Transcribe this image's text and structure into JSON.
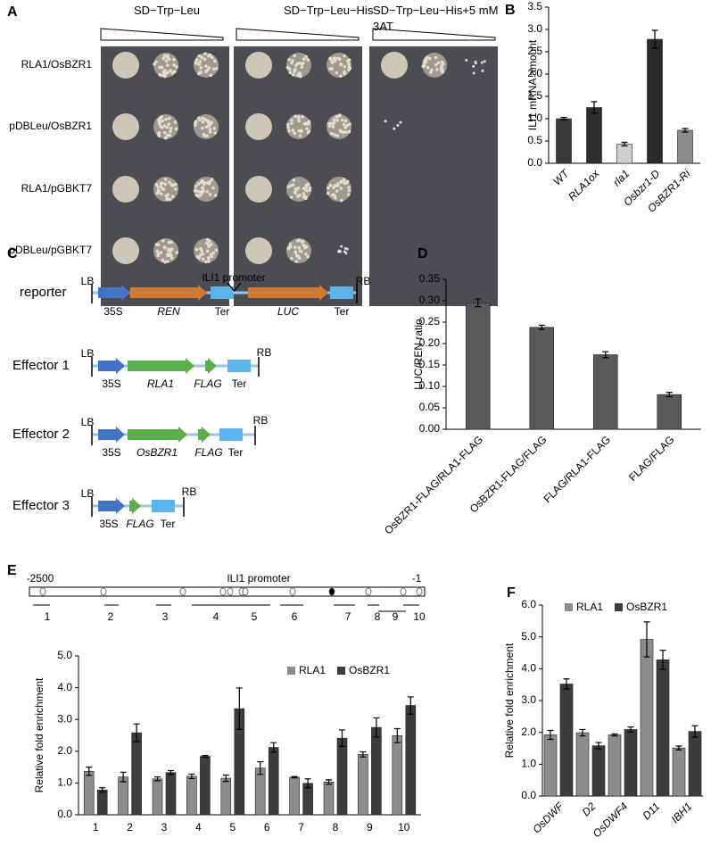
{
  "panel_a": {
    "label": "A",
    "conditions": [
      "SD−Trp−Leu",
      "SD−Trp−Leu−His",
      "SD−Trp−Leu−His+5 mM 3AT"
    ],
    "strains": [
      "RLA1/OsBZR1",
      "pDBLeu/OsBZR1",
      "RLA1/pGBKT7",
      "pDBLeu/pGBKT7"
    ]
  },
  "panel_c": {
    "label": "C",
    "constructs": [
      {
        "name": "reporter",
        "parts": [
          "LB",
          "35S",
          "REN",
          "Ter",
          "ILI1 promoter",
          "LUC",
          "Ter",
          "RB"
        ]
      },
      {
        "name": "Effector 1",
        "parts": [
          "LB",
          "35S",
          "RLA1",
          "FLAG",
          "Ter",
          "RB"
        ]
      },
      {
        "name": "Effector 2",
        "parts": [
          "LB",
          "35S",
          "OsBZR1",
          "FLAG",
          "Ter",
          "RB"
        ]
      },
      {
        "name": "Effector 3",
        "parts": [
          "LB",
          "35S",
          "FLAG",
          "Ter",
          "RB"
        ]
      }
    ]
  },
  "promoter_e": {
    "start": -2500,
    "title": "ILI1 promoter",
    "end": -1,
    "fragments": [
      "1",
      "2",
      "3",
      "4",
      "5",
      "6",
      "7",
      "8",
      "9",
      "10"
    ]
  },
  "chart_data": [
    {
      "panel": "B",
      "type": "bar",
      "y_label": "ILI1 mRNA amount",
      "categories": [
        "WT",
        "RLA1ox",
        "rla1",
        "Osbzr1-D",
        "OsBZR1-Ri"
      ],
      "values": [
        1.0,
        1.25,
        0.43,
        2.78,
        0.74
      ],
      "errors": [
        0.03,
        0.13,
        0.04,
        0.2,
        0.04
      ],
      "colors": [
        "#3a3a3a",
        "#2e2e2e",
        "#cfcfcf",
        "#2a2a2a",
        "#8c8c8c"
      ],
      "ylim": [
        0,
        3.5
      ],
      "yticks": [
        {
          "value": 0,
          "label": "0.0"
        },
        {
          "value": 0.5,
          "label": "0.5"
        },
        {
          "value": 1,
          "label": "1.0"
        },
        {
          "value": 1.5,
          "label": "1.5"
        },
        {
          "value": 2,
          "label": "2.0"
        },
        {
          "value": 2.5,
          "label": "2.5"
        },
        {
          "value": 3,
          "label": "3.0"
        },
        {
          "value": 3.5,
          "label": "3.5"
        }
      ]
    },
    {
      "panel": "D",
      "type": "bar",
      "y_label": "LUC/REN ratio",
      "categories": [
        "OsBZR1-FLAG/RLA1-FLAG",
        "OsBZR1-FLAG/FLAG",
        "FLAG/RLA1-FLAG",
        "FLAG/FLAG"
      ],
      "values": [
        0.295,
        0.238,
        0.174,
        0.081
      ],
      "errors": [
        0.009,
        0.005,
        0.007,
        0.005
      ],
      "color": "#595959",
      "ylim": [
        0,
        0.35
      ],
      "yticks": [
        {
          "value": 0,
          "label": "0.00"
        },
        {
          "value": 0.05,
          "label": "0.05"
        },
        {
          "value": 0.1,
          "label": "0.10"
        },
        {
          "value": 0.15,
          "label": "0.15"
        },
        {
          "value": 0.2,
          "label": "0.20"
        },
        {
          "value": 0.25,
          "label": "0.25"
        },
        {
          "value": 0.3,
          "label": "0.30"
        },
        {
          "value": 0.35,
          "label": "0.35"
        }
      ]
    },
    {
      "panel": "E",
      "type": "bar",
      "y_label": "Relative fold enrichment",
      "categories": [
        "1",
        "2",
        "3",
        "4",
        "5",
        "6",
        "7",
        "8",
        "9",
        "10"
      ],
      "series": [
        {
          "name": "RLA1",
          "color": "#8c8c8c",
          "values": [
            1.37,
            1.19,
            1.13,
            1.21,
            1.15,
            1.47,
            1.18,
            1.03,
            1.9,
            2.49
          ],
          "errors": [
            0.13,
            0.15,
            0.06,
            0.07,
            0.1,
            0.2,
            0.02,
            0.07,
            0.08,
            0.22
          ]
        },
        {
          "name": "OsBZR1",
          "color": "#3c3c3c",
          "values": [
            0.78,
            2.58,
            1.33,
            1.84,
            3.34,
            2.12,
            0.99,
            2.41,
            2.75,
            3.44
          ],
          "errors": [
            0.07,
            0.28,
            0.06,
            0.03,
            0.65,
            0.15,
            0.14,
            0.26,
            0.3,
            0.27
          ]
        }
      ],
      "ylim": [
        0,
        5
      ],
      "yticks": [
        {
          "value": 0,
          "label": "0.0"
        },
        {
          "value": 1,
          "label": "1.0"
        },
        {
          "value": 2,
          "label": "2.0"
        },
        {
          "value": 3,
          "label": "3.0"
        },
        {
          "value": 4,
          "label": "4.0"
        },
        {
          "value": 5,
          "label": "5.0"
        }
      ]
    },
    {
      "panel": "F",
      "type": "bar",
      "y_label": "Relative fold enrichment",
      "categories": [
        "OsDWF",
        "D2",
        "OsDWF4",
        "D11",
        "IBH1"
      ],
      "series": [
        {
          "name": "RLA1",
          "color": "#8c8c8c",
          "values": [
            1.92,
            1.99,
            1.92,
            4.92,
            1.51
          ],
          "errors": [
            0.14,
            0.1,
            0.03,
            0.55,
            0.06
          ]
        },
        {
          "name": "OsBZR1",
          "color": "#3c3c3c",
          "values": [
            3.52,
            1.58,
            2.09,
            4.28,
            2.03
          ],
          "errors": [
            0.16,
            0.1,
            0.08,
            0.3,
            0.18
          ]
        }
      ],
      "ylim": [
        0,
        6
      ],
      "yticks": [
        {
          "value": 0,
          "label": "0.0"
        },
        {
          "value": 1,
          "label": "1.0"
        },
        {
          "value": 2,
          "label": "2.0"
        },
        {
          "value": 3,
          "label": "3.0"
        },
        {
          "value": 4,
          "label": "4.0"
        },
        {
          "value": 5,
          "label": "5.0"
        },
        {
          "value": 6,
          "label": "6.0"
        }
      ]
    }
  ]
}
